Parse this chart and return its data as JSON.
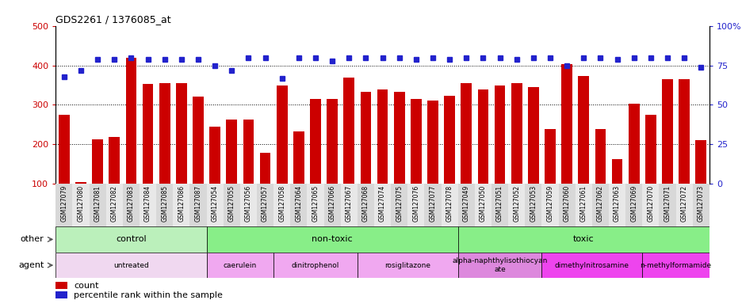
{
  "title": "GDS2261 / 1376085_at",
  "samples": [
    "GSM127079",
    "GSM127080",
    "GSM127081",
    "GSM127082",
    "GSM127083",
    "GSM127084",
    "GSM127085",
    "GSM127086",
    "GSM127087",
    "GSM127054",
    "GSM127055",
    "GSM127056",
    "GSM127057",
    "GSM127058",
    "GSM127064",
    "GSM127065",
    "GSM127066",
    "GSM127067",
    "GSM127068",
    "GSM127074",
    "GSM127075",
    "GSM127076",
    "GSM127077",
    "GSM127078",
    "GSM127049",
    "GSM127050",
    "GSM127051",
    "GSM127052",
    "GSM127053",
    "GSM127059",
    "GSM127060",
    "GSM127061",
    "GSM127062",
    "GSM127063",
    "GSM127069",
    "GSM127070",
    "GSM127071",
    "GSM127072",
    "GSM127073"
  ],
  "counts": [
    275,
    105,
    213,
    218,
    420,
    353,
    355,
    355,
    320,
    245,
    262,
    262,
    178,
    350,
    232,
    315,
    314,
    370,
    333,
    340,
    333,
    315,
    310,
    322,
    355,
    339,
    350,
    355,
    345,
    238,
    403,
    373,
    238,
    163,
    302,
    275,
    365,
    365,
    210
  ],
  "pct_values": [
    68,
    72,
    79,
    79,
    80,
    79,
    79,
    79,
    79,
    75,
    72,
    80,
    80,
    67,
    80,
    80,
    78,
    80,
    80,
    80,
    80,
    79,
    80,
    79,
    80,
    80,
    80,
    79,
    80,
    80,
    75,
    80,
    80,
    79,
    80,
    80,
    80,
    80,
    74
  ],
  "bar_color": "#cc0000",
  "dot_color": "#2222cc",
  "ylim_left": [
    100,
    500
  ],
  "ylim_right": [
    0,
    100
  ],
  "yticks_left": [
    100,
    200,
    300,
    400,
    500
  ],
  "yticks_right": [
    0,
    25,
    50,
    75,
    100
  ],
  "groups_other": [
    {
      "label": "control",
      "start": 0,
      "end": 9,
      "color": "#bbf0bb"
    },
    {
      "label": "non-toxic",
      "start": 9,
      "end": 24,
      "color": "#88ee88"
    },
    {
      "label": "toxic",
      "start": 24,
      "end": 39,
      "color": "#88ee88"
    }
  ],
  "groups_agent": [
    {
      "label": "untreated",
      "start": 0,
      "end": 9,
      "color": "#f0d8f0"
    },
    {
      "label": "caerulein",
      "start": 9,
      "end": 13,
      "color": "#f0a8f0"
    },
    {
      "label": "dinitrophenol",
      "start": 13,
      "end": 18,
      "color": "#f0a8f0"
    },
    {
      "label": "rosiglitazone",
      "start": 18,
      "end": 24,
      "color": "#f0a8f0"
    },
    {
      "label": "alpha-naphthylisothiocyan\nate",
      "start": 24,
      "end": 29,
      "color": "#dd88dd"
    },
    {
      "label": "dimethylnitrosamine",
      "start": 29,
      "end": 35,
      "color": "#ee44ee"
    },
    {
      "label": "n-methylformamide",
      "start": 35,
      "end": 39,
      "color": "#ee44ee"
    }
  ]
}
